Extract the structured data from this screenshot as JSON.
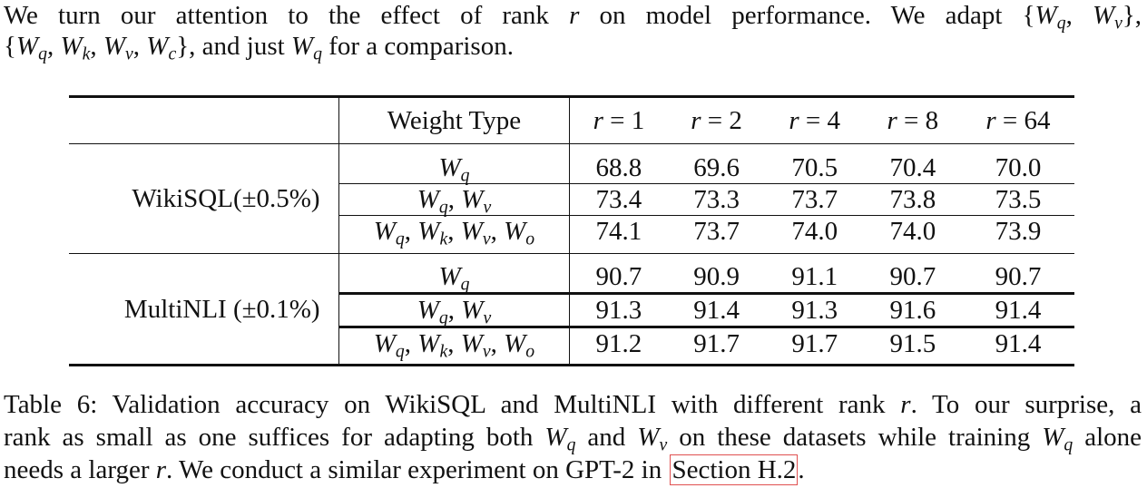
{
  "intro": {
    "line1_text_a": "We turn our attention to the effect of rank",
    "line1_text_b": "on model performance.  We adapt",
    "line2_text": ", and just",
    "line2_text_b": "for a comparison."
  },
  "table": {
    "header": {
      "weight_type": "Weight Type",
      "ranks": [
        "r = 1",
        "r = 2",
        "r = 4",
        "r = 8",
        "r = 64"
      ]
    },
    "groups": [
      {
        "dataset": "WikiSQL(±0.5%)",
        "rows": [
          {
            "weight": "Wq",
            "values": [
              "68.8",
              "69.6",
              "70.5",
              "70.4",
              "70.0"
            ]
          },
          {
            "weight": "Wq, Wv",
            "values": [
              "73.4",
              "73.3",
              "73.7",
              "73.8",
              "73.5"
            ]
          },
          {
            "weight": "Wq, Wk, Wv, Wo",
            "values": [
              "74.1",
              "73.7",
              "74.0",
              "74.0",
              "73.9"
            ]
          }
        ]
      },
      {
        "dataset": "MultiNLI (±0.1%)",
        "rows": [
          {
            "weight": "Wq",
            "values": [
              "90.7",
              "90.9",
              "91.1",
              "90.7",
              "90.7"
            ]
          },
          {
            "weight": "Wq, Wv",
            "values": [
              "91.3",
              "91.4",
              "91.3",
              "91.6",
              "91.4"
            ]
          },
          {
            "weight": "Wq, Wk, Wv, Wo",
            "values": [
              "91.2",
              "91.7",
              "91.7",
              "91.5",
              "91.4"
            ]
          }
        ]
      }
    ]
  },
  "caption": {
    "line1": "Table 6: Validation accuracy on WikiSQL and MultiNLI with different rank",
    "line1_b": ". To our surprise, a",
    "line2_a": "rank as small as one suffices for adapting both",
    "line2_b": "and",
    "line2_c": "on these datasets while training",
    "line2_d": "alone",
    "line3_a": "needs a larger",
    "line3_b": ". We conduct a similar experiment on GPT-2 in",
    "link": "Section H.2",
    "line3_end": "."
  }
}
